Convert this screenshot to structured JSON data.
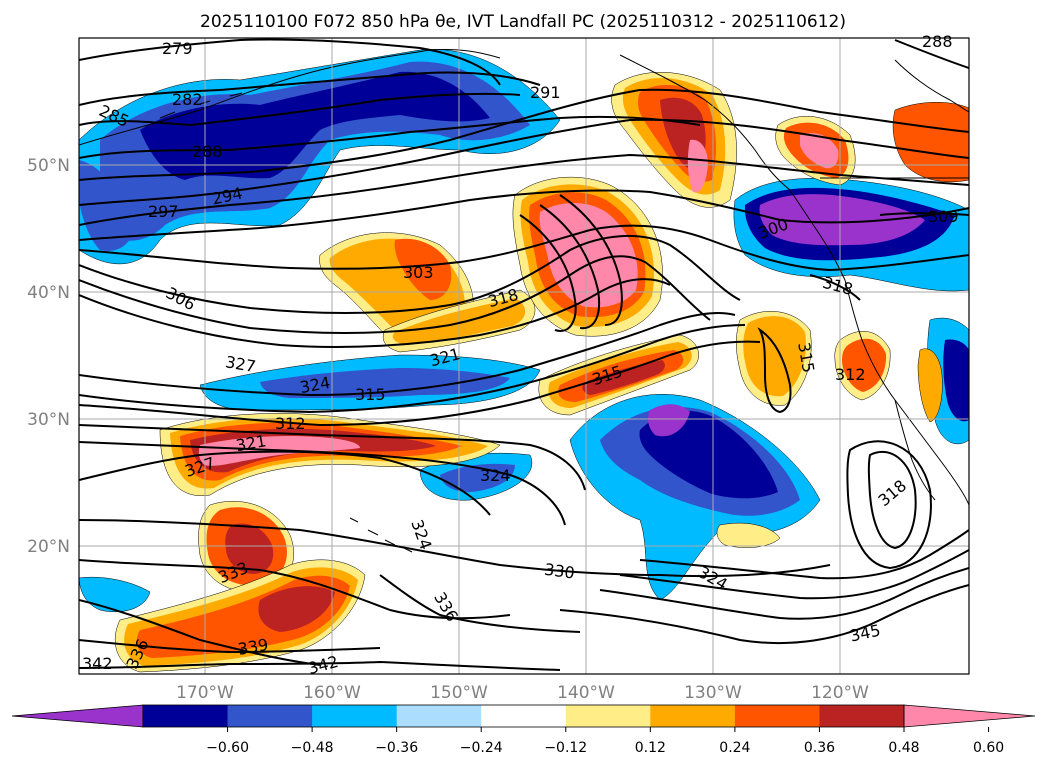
{
  "title": "2025110100 F072 850 hPa θe, IVT Landfall PC (2025110312 - 2025110612)",
  "map": {
    "lat_labels": [
      "50°N",
      "40°N",
      "30°N",
      "20°N"
    ],
    "lon_labels": [
      "170°W",
      "160°W",
      "150°W",
      "140°W",
      "130°W",
      "120°W"
    ],
    "gridlines": true
  },
  "colorbar": {
    "ticks": [
      "−0.60",
      "−0.48",
      "−0.36",
      "−0.24",
      "−0.12",
      "0.12",
      "0.24",
      "0.36",
      "0.48",
      "0.60"
    ],
    "colors": [
      "#9933cc",
      "#000099",
      "#3355cc",
      "#00bbff",
      "#aaddff",
      "#ffffff",
      "#ffee88",
      "#ffaa00",
      "#ff5500",
      "#bb2222",
      "#ff88aa"
    ],
    "extend": "both"
  },
  "contour_labels": [
    {
      "text": "279"
    },
    {
      "text": "282"
    },
    {
      "text": "285"
    },
    {
      "text": "288"
    },
    {
      "text": "288"
    },
    {
      "text": "291"
    },
    {
      "text": "294"
    },
    {
      "text": "297"
    },
    {
      "text": "300"
    },
    {
      "text": "303"
    },
    {
      "text": "306"
    },
    {
      "text": "309"
    },
    {
      "text": "312"
    },
    {
      "text": "312"
    },
    {
      "text": "315"
    },
    {
      "text": "315"
    },
    {
      "text": "315"
    },
    {
      "text": "318"
    },
    {
      "text": "318"
    },
    {
      "text": "318"
    },
    {
      "text": "321"
    },
    {
      "text": "321"
    },
    {
      "text": "324"
    },
    {
      "text": "324"
    },
    {
      "text": "324"
    },
    {
      "text": "324"
    },
    {
      "text": "327"
    },
    {
      "text": "327"
    },
    {
      "text": "330"
    },
    {
      "text": "333"
    },
    {
      "text": "336"
    },
    {
      "text": "336"
    },
    {
      "text": "339"
    },
    {
      "text": "342"
    },
    {
      "text": "342"
    },
    {
      "text": "345"
    }
  ]
}
